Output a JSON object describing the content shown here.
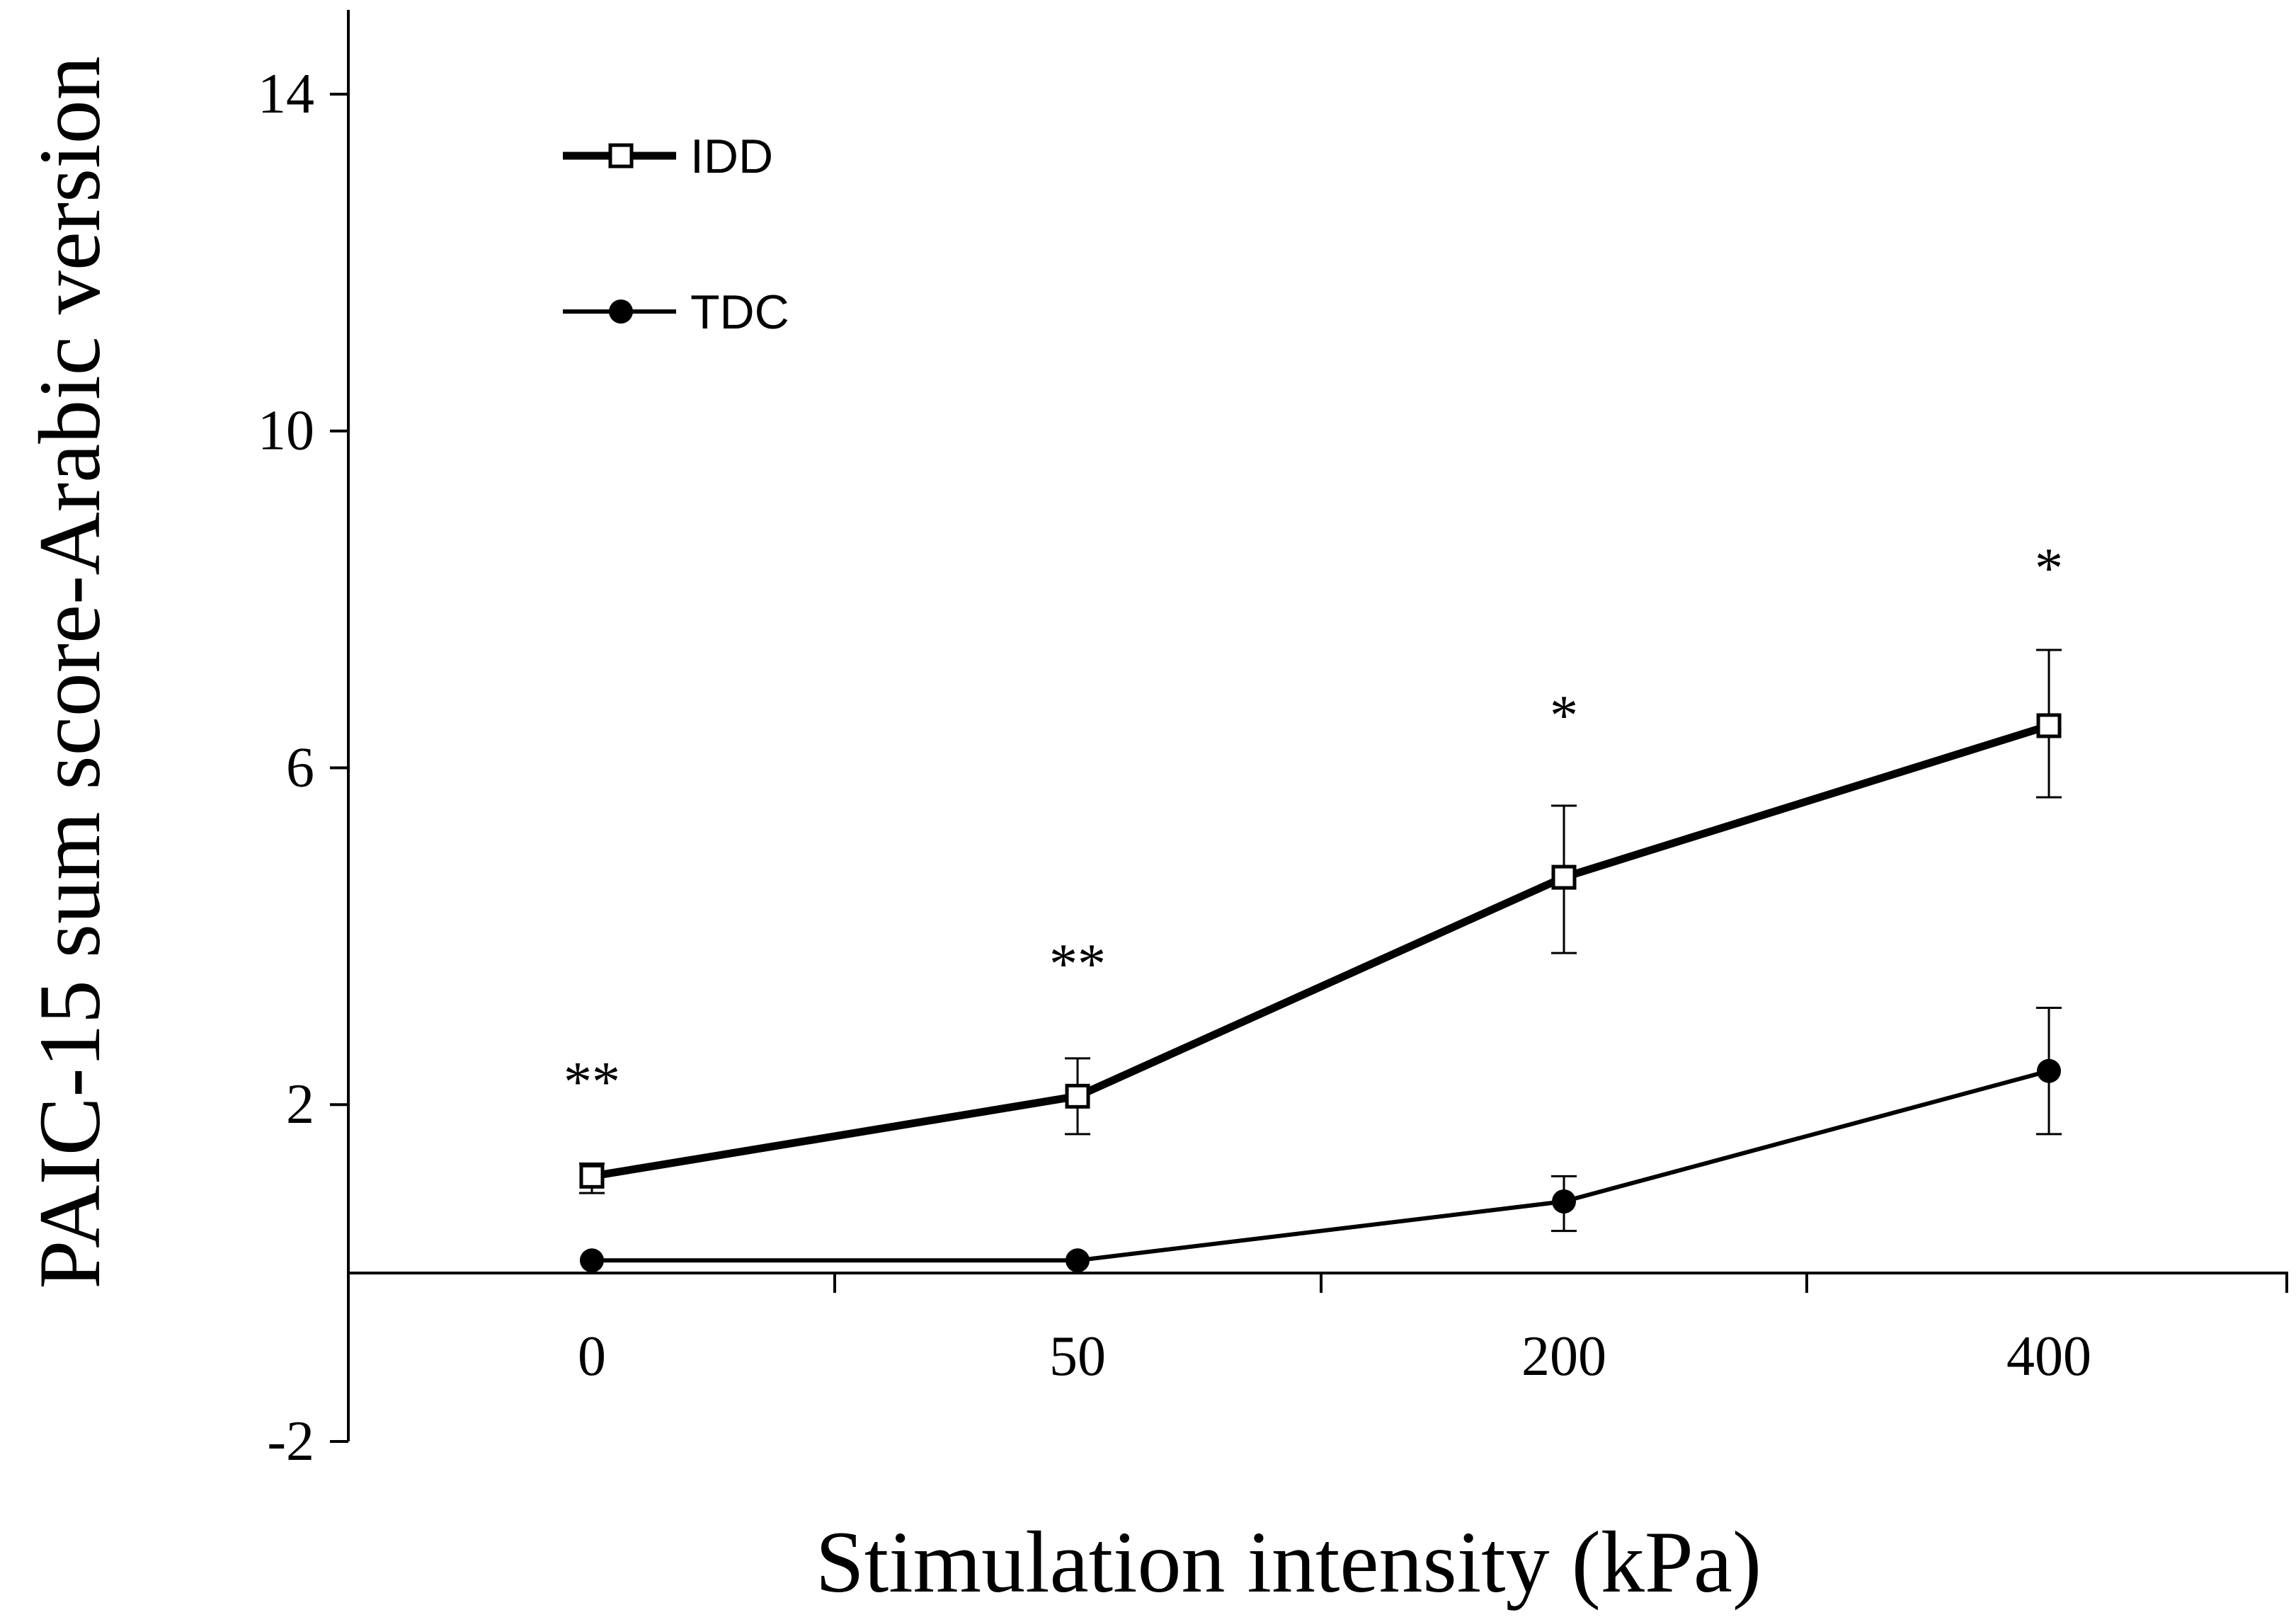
{
  "chart_data": {
    "type": "line",
    "title": "",
    "xlabel": "Stimulation intensity (kPa)",
    "ylabel": "PAIC-15 sum score-Arabic version",
    "categories": [
      "0",
      "50",
      "200",
      "400"
    ],
    "ylim": [
      -2,
      15
    ],
    "yticks": [
      -2,
      2,
      6,
      10,
      14
    ],
    "ytick_labels": [
      "-2",
      "2",
      "6",
      "10",
      "14"
    ],
    "x_axis_crosses_y_at": 0,
    "grid": false,
    "legend_position": "top-left",
    "series": [
      {
        "name": "IDD",
        "marker": "open-square",
        "line": "thick",
        "values": [
          1.15,
          2.1,
          4.7,
          6.5
        ],
        "error_upper": [
          1.3,
          2.55,
          5.55,
          7.4
        ],
        "error_lower": [
          0.95,
          1.65,
          3.8,
          5.65
        ]
      },
      {
        "name": "TDC",
        "marker": "filled-circle",
        "line": "thin",
        "values": [
          0.15,
          0.15,
          0.85,
          2.4
        ],
        "error_upper": [
          0.15,
          0.15,
          1.15,
          3.15
        ],
        "error_lower": [
          0.15,
          0.15,
          0.5,
          1.65
        ]
      }
    ],
    "annotations": [
      {
        "category": "0",
        "text": "**",
        "y": 2.35
      },
      {
        "category": "50",
        "text": "**",
        "y": 3.75
      },
      {
        "category": "200",
        "text": "*",
        "y": 6.7
      },
      {
        "category": "400",
        "text": "*",
        "y": 8.45
      }
    ]
  }
}
